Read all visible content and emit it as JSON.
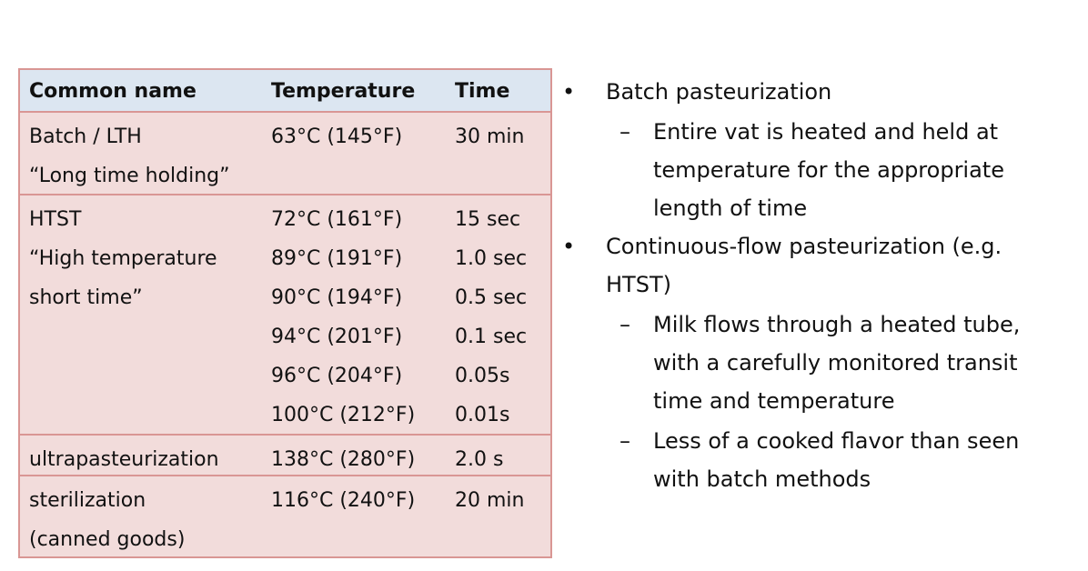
{
  "table": {
    "header": [
      "Common name",
      "Temperature",
      "Time"
    ],
    "rows": [
      {
        "name": [
          "Batch / LTH",
          "“Long time holding”"
        ],
        "entries": [
          [
            "63°C (145°F)",
            "30 min"
          ]
        ]
      },
      {
        "name": [
          "HTST",
          "“High temperature short time”"
        ],
        "entries": [
          [
            "72°C (161°F)",
            "15 sec"
          ],
          [
            "89°C (191°F)",
            "1.0 sec"
          ],
          [
            "90°C (194°F)",
            "0.5 sec"
          ],
          [
            "94°C (201°F)",
            "0.1 sec"
          ],
          [
            "96°C (204°F)",
            "0.05s"
          ],
          [
            "100°C (212°F)",
            "0.01s"
          ]
        ]
      },
      {
        "name": [
          "ultrapasteurization"
        ],
        "entries": [
          [
            "138°C (280°F)",
            "2.0 s"
          ]
        ]
      },
      {
        "name": [
          "sterilization",
          "(canned goods)"
        ],
        "entries": [
          [
            "116°C (240°F)",
            "20 min"
          ]
        ]
      }
    ]
  },
  "bullets": [
    {
      "text": "Batch pasteurization",
      "sub": [
        "Entire vat is heated and held at temperature for the appropriate length of time"
      ]
    },
    {
      "text": "Continuous-flow pasteurization (e.g. HTST)",
      "sub": [
        "Milk flows through a heated tube, with a carefully monitored transit time and temperature",
        "Less of a cooked flavor than seen with batch methods"
      ]
    }
  ]
}
